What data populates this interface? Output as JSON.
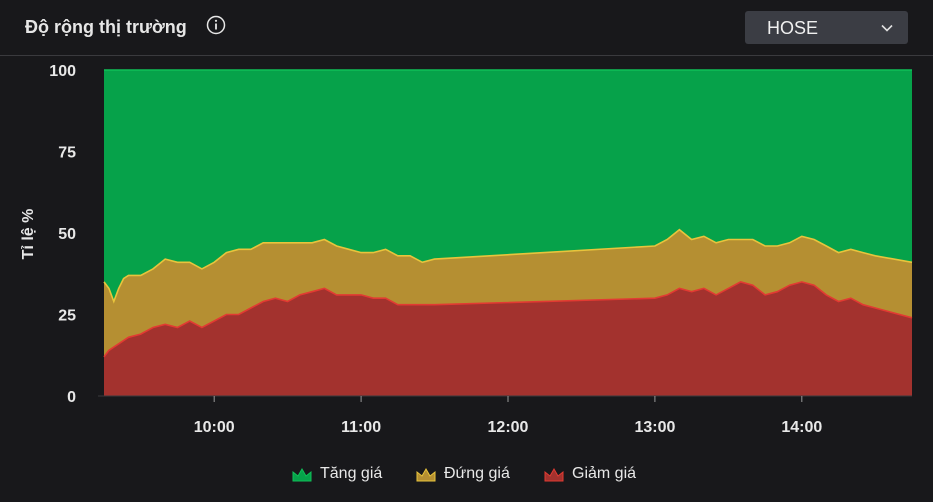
{
  "header": {
    "title": "Độ rộng thị trường",
    "info_icon": "info-circle-icon",
    "exchange_selected": "HOSE",
    "dropdown_icon": "chevron-down-icon"
  },
  "colors": {
    "increase": "#06a24a",
    "unchanged": "#b58f32",
    "decrease": "#a3322e",
    "increase_line": "#0fc058",
    "unchanged_line": "#e8c43c",
    "decrease_line": "#e23a32",
    "background": "#18181b",
    "text": "#e8e8e8"
  },
  "chart_data": {
    "type": "area",
    "stacked": true,
    "ylabel": "Tỉ lệ %",
    "xlabel": "",
    "ylim": [
      0,
      100
    ],
    "xlim": [
      "09:15",
      "14:45"
    ],
    "y_ticks": [
      "0",
      "25",
      "50",
      "75",
      "100"
    ],
    "x_ticks": [
      "10:00",
      "11:00",
      "12:00",
      "13:00",
      "14:00"
    ],
    "grid": false,
    "legend_position": "bottom",
    "x": [
      "09:15",
      "09:17",
      "09:19",
      "09:21",
      "09:23",
      "09:25",
      "09:30",
      "09:35",
      "09:40",
      "09:45",
      "09:50",
      "09:55",
      "10:00",
      "10:05",
      "10:10",
      "10:15",
      "10:20",
      "10:25",
      "10:30",
      "10:35",
      "10:40",
      "10:45",
      "10:50",
      "10:55",
      "11:00",
      "11:05",
      "11:10",
      "11:15",
      "11:20",
      "11:25",
      "11:30",
      "13:00",
      "13:05",
      "13:10",
      "13:15",
      "13:20",
      "13:25",
      "13:30",
      "13:35",
      "13:40",
      "13:45",
      "13:50",
      "13:55",
      "14:00",
      "14:05",
      "14:10",
      "14:15",
      "14:20",
      "14:25",
      "14:30",
      "14:45"
    ],
    "series": [
      {
        "name": "Giảm giá",
        "values": [
          12,
          14,
          15,
          16,
          17,
          18,
          19,
          21,
          22,
          21,
          23,
          21,
          23,
          25,
          25,
          27,
          29,
          30,
          29,
          31,
          32,
          33,
          31,
          31,
          31,
          30,
          30,
          28,
          28,
          28,
          28,
          30,
          31,
          33,
          32,
          33,
          31,
          33,
          35,
          34,
          31,
          32,
          34,
          35,
          34,
          31,
          29,
          30,
          28,
          27,
          24
        ]
      },
      {
        "name": "Đứng giá",
        "values": [
          23,
          19,
          14,
          17,
          19,
          19,
          18,
          18,
          20,
          20,
          18,
          18,
          18,
          19,
          20,
          18,
          18,
          17,
          18,
          16,
          15,
          15,
          15,
          14,
          13,
          14,
          15,
          15,
          15,
          13,
          14,
          16,
          17,
          18,
          16,
          16,
          16,
          15,
          13,
          14,
          15,
          14,
          13,
          14,
          14,
          15,
          15,
          15,
          16,
          16,
          17
        ]
      },
      {
        "name": "Tăng giá",
        "values": [
          65,
          67,
          71,
          67,
          64,
          63,
          63,
          61,
          58,
          59,
          59,
          61,
          59,
          56,
          55,
          55,
          53,
          53,
          53,
          53,
          53,
          52,
          54,
          55,
          56,
          56,
          55,
          57,
          57,
          59,
          58,
          54,
          52,
          49,
          52,
          51,
          53,
          52,
          52,
          52,
          54,
          54,
          53,
          51,
          52,
          54,
          56,
          55,
          56,
          57,
          59
        ]
      }
    ]
  },
  "legend": [
    {
      "label": "Tăng giá",
      "icon": "crown-icon-green"
    },
    {
      "label": "Đứng giá",
      "icon": "crown-icon-yellow"
    },
    {
      "label": "Giảm giá",
      "icon": "crown-icon-red"
    }
  ]
}
